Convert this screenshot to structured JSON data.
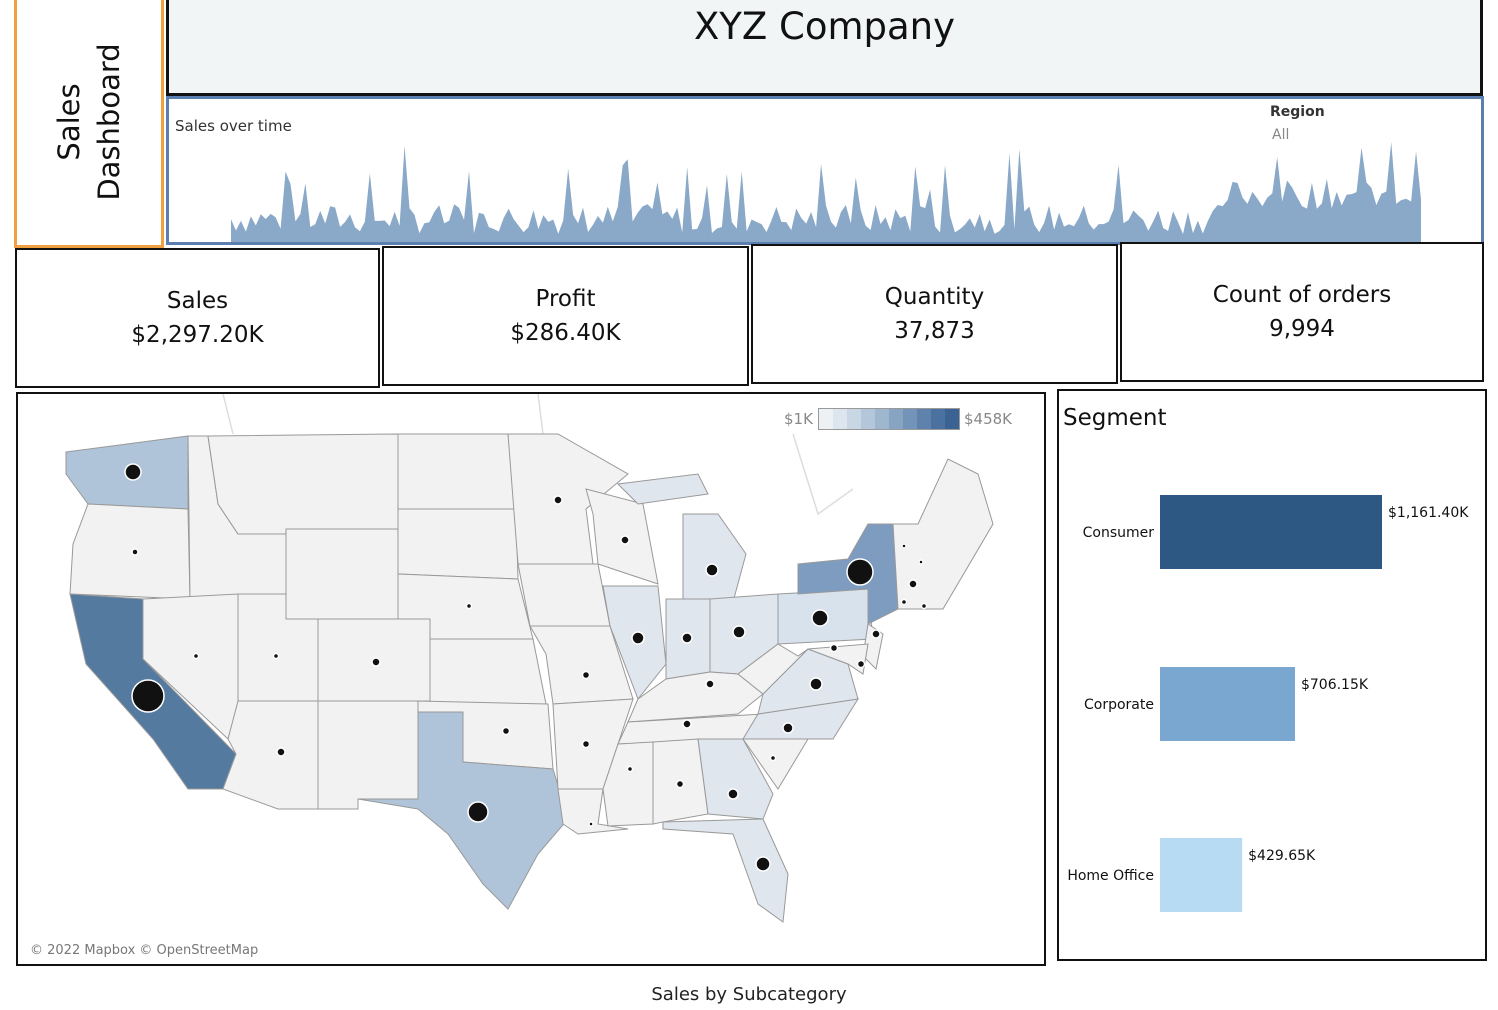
{
  "dashboard": {
    "side_title_line1": "Sales",
    "side_title_line2": "Dashboard",
    "company_title": "XYZ Company"
  },
  "timeline": {
    "title": "Sales over time",
    "region_label": "Region",
    "region_value": "All",
    "color": "#8aa8c8"
  },
  "kpis": [
    {
      "label": "Sales",
      "value": "$2,297.20K"
    },
    {
      "label": "Profit",
      "value": "$286.40K"
    },
    {
      "label": "Quantity",
      "value": "37,873"
    },
    {
      "label": "Count of orders",
      "value": "9,994"
    }
  ],
  "map": {
    "legend_min": "$1K",
    "legend_max": "$458K",
    "credit": "© 2022 Mapbox © OpenStreetMap",
    "legend_colors": [
      "#eef1f4",
      "#dde5ee",
      "#c9d6e4",
      "#b4c6da",
      "#9fb6cf",
      "#88a4c3",
      "#7393b8",
      "#5e82ac",
      "#4a719f",
      "#3a6393"
    ]
  },
  "chart_data": {
    "type": "bar",
    "title": "Segment",
    "categories": [
      "Consumer",
      "Corporate",
      "Home Office"
    ],
    "values": [
      1161.4,
      706.15,
      429.65
    ],
    "value_labels": [
      "$1,161.40K",
      "$706.15K",
      "$429.65K"
    ],
    "colors": [
      "#2e5884",
      "#79a7d0",
      "#b7dbf2"
    ]
  },
  "footer": {
    "title": "Sales by Subcategory"
  }
}
